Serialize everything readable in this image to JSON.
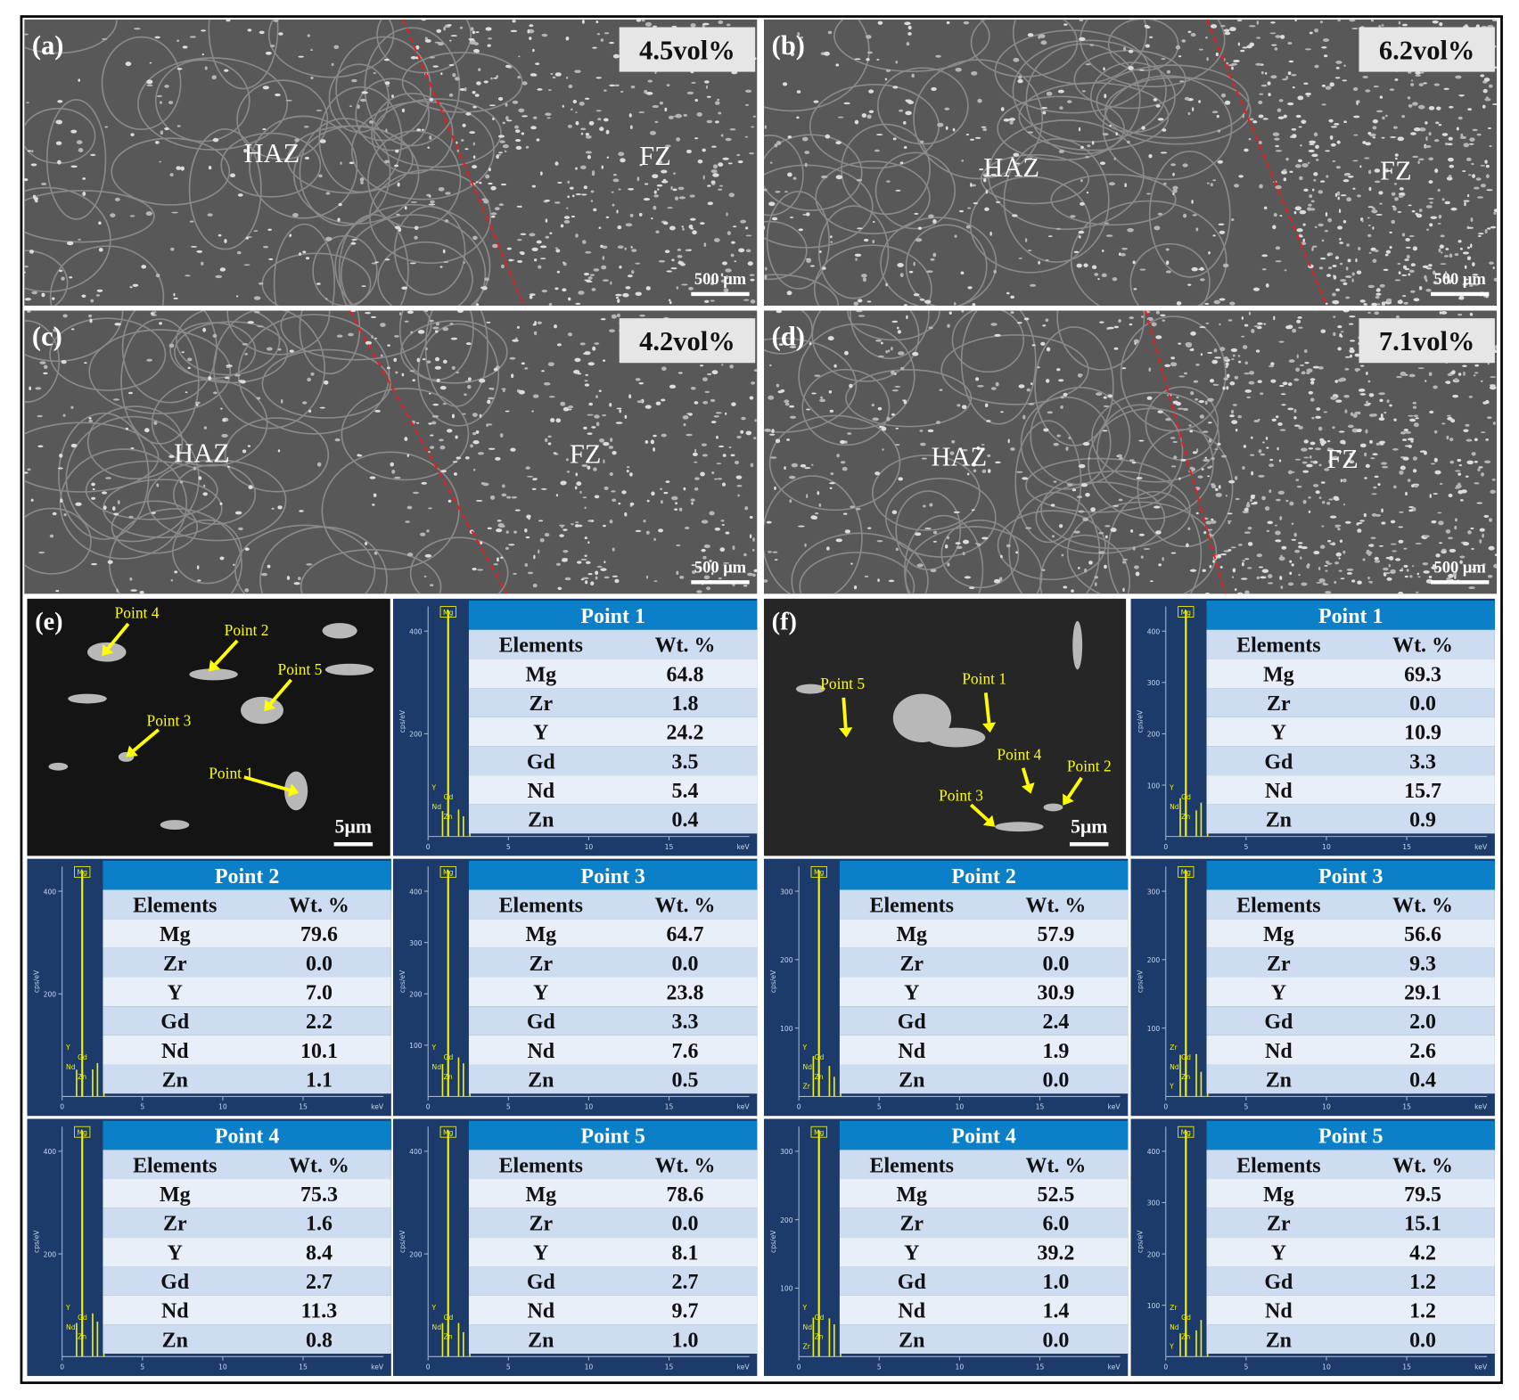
{
  "micrographs": [
    {
      "label": "(a)",
      "fraction": "4.5vol%",
      "zones": [
        "HAZ",
        "FZ"
      ],
      "scale_bar": "500 μm"
    },
    {
      "label": "(b)",
      "fraction": "6.2vol%",
      "zones": [
        "HAZ",
        "FZ"
      ],
      "scale_bar": "500 μm"
    },
    {
      "label": "(c)",
      "fraction": "4.2vol%",
      "zones": [
        "HAZ",
        "FZ"
      ],
      "scale_bar": "500 μm"
    },
    {
      "label": "(d)",
      "fraction": "7.1vol%",
      "zones": [
        "HAZ",
        "FZ"
      ],
      "scale_bar": "500 μm"
    }
  ],
  "sem_images": [
    {
      "label": "(e)",
      "scale_bar": "5μm",
      "points": [
        "Point 1",
        "Point 2",
        "Point 3",
        "Point 4",
        "Point 5"
      ]
    },
    {
      "label": "(f)",
      "scale_bar": "5μm",
      "points": [
        "Point 1",
        "Point 2",
        "Point 3",
        "Point 4",
        "Point 5"
      ]
    }
  ],
  "eds": [
    [
      {
        "title": "Point 1",
        "columns": [
          "Elements",
          "Wt. %"
        ],
        "rows": [
          [
            "Mg",
            "64.8"
          ],
          [
            "Zr",
            "1.8"
          ],
          [
            "Y",
            "24.2"
          ],
          [
            "Gd",
            "3.5"
          ],
          [
            "Nd",
            "5.4"
          ],
          [
            "Zn",
            "0.4"
          ]
        ],
        "spectrum": {
          "peak": "Mg",
          "minor_peaks": [
            "Y",
            "Gd",
            "Nd",
            "Zn"
          ],
          "yticks": [
            400,
            200
          ],
          "xticks": [
            0,
            5,
            10,
            15
          ],
          "xunit": "keV",
          "yunit": "cps/eV"
        }
      },
      {
        "title": "Point 2",
        "columns": [
          "Elements",
          "Wt. %"
        ],
        "rows": [
          [
            "Mg",
            "79.6"
          ],
          [
            "Zr",
            "0.0"
          ],
          [
            "Y",
            "7.0"
          ],
          [
            "Gd",
            "2.2"
          ],
          [
            "Nd",
            "10.1"
          ],
          [
            "Zn",
            "1.1"
          ]
        ],
        "spectrum": {
          "peak": "Mg",
          "minor_peaks": [
            "Y",
            "Gd",
            "Nd",
            "Zn"
          ],
          "yticks": [
            400,
            200
          ],
          "xticks": [
            0,
            5,
            10,
            15
          ],
          "xunit": "keV",
          "yunit": "cps/eV"
        }
      },
      {
        "title": "Point 3",
        "columns": [
          "Elements",
          "Wt. %"
        ],
        "rows": [
          [
            "Mg",
            "64.7"
          ],
          [
            "Zr",
            "0.0"
          ],
          [
            "Y",
            "23.8"
          ],
          [
            "Gd",
            "3.3"
          ],
          [
            "Nd",
            "7.6"
          ],
          [
            "Zn",
            "0.5"
          ]
        ],
        "spectrum": {
          "peak": "Mg",
          "minor_peaks": [
            "Y",
            "Gd",
            "Nd",
            "Zn"
          ],
          "yticks": [
            400,
            300,
            200,
            100
          ],
          "xticks": [
            0,
            5,
            10,
            15
          ],
          "xunit": "keV",
          "yunit": "cps/eV"
        }
      },
      {
        "title": "Point 4",
        "columns": [
          "Elements",
          "Wt. %"
        ],
        "rows": [
          [
            "Mg",
            "75.3"
          ],
          [
            "Zr",
            "1.6"
          ],
          [
            "Y",
            "8.4"
          ],
          [
            "Gd",
            "2.7"
          ],
          [
            "Nd",
            "11.3"
          ],
          [
            "Zn",
            "0.8"
          ]
        ],
        "spectrum": {
          "peak": "Mg",
          "minor_peaks": [
            "Y",
            "Gd",
            "Nd",
            "Zn"
          ],
          "yticks": [
            400,
            200
          ],
          "xticks": [
            0,
            5,
            10,
            15
          ],
          "xunit": "keV",
          "yunit": "cps/eV"
        }
      },
      {
        "title": "Point 5",
        "columns": [
          "Elements",
          "Wt. %"
        ],
        "rows": [
          [
            "Mg",
            "78.6"
          ],
          [
            "Zr",
            "0.0"
          ],
          [
            "Y",
            "8.1"
          ],
          [
            "Gd",
            "2.7"
          ],
          [
            "Nd",
            "9.7"
          ],
          [
            "Zn",
            "1.0"
          ]
        ],
        "spectrum": {
          "peak": "Mg",
          "minor_peaks": [
            "Y",
            "Gd",
            "Nd",
            "Zn"
          ],
          "yticks": [
            400,
            200
          ],
          "xticks": [
            0,
            5,
            10,
            15
          ],
          "xunit": "keV",
          "yunit": "cps/eV"
        }
      }
    ],
    [
      {
        "title": "Point 1",
        "columns": [
          "Elements",
          "Wt. %"
        ],
        "rows": [
          [
            "Mg",
            "69.3"
          ],
          [
            "Zr",
            "0.0"
          ],
          [
            "Y",
            "10.9"
          ],
          [
            "Gd",
            "3.3"
          ],
          [
            "Nd",
            "15.7"
          ],
          [
            "Zn",
            "0.9"
          ]
        ],
        "spectrum": {
          "peak": "Mg",
          "minor_peaks": [
            "Y",
            "Gd",
            "Nd",
            "Zn"
          ],
          "yticks": [
            400,
            300,
            200,
            100
          ],
          "xticks": [
            0,
            5,
            10,
            15
          ],
          "xunit": "keV",
          "yunit": "cps/eV"
        }
      },
      {
        "title": "Point 2",
        "columns": [
          "Elements",
          "Wt. %"
        ],
        "rows": [
          [
            "Mg",
            "57.9"
          ],
          [
            "Zr",
            "0.0"
          ],
          [
            "Y",
            "30.9"
          ],
          [
            "Gd",
            "2.4"
          ],
          [
            "Nd",
            "1.9"
          ],
          [
            "Zn",
            "0.0"
          ]
        ],
        "spectrum": {
          "peak": "Mg",
          "minor_peaks": [
            "Y",
            "Gd",
            "Nd",
            "Zn",
            "Zr"
          ],
          "yticks": [
            300,
            200,
            100
          ],
          "xticks": [
            0,
            5,
            10,
            15
          ],
          "xunit": "keV",
          "yunit": "cps/eV"
        }
      },
      {
        "title": "Point 3",
        "columns": [
          "Elements",
          "Wt. %"
        ],
        "rows": [
          [
            "Mg",
            "56.6"
          ],
          [
            "Zr",
            "9.3"
          ],
          [
            "Y",
            "29.1"
          ],
          [
            "Gd",
            "2.0"
          ],
          [
            "Nd",
            "2.6"
          ],
          [
            "Zn",
            "0.4"
          ]
        ],
        "spectrum": {
          "peak": "Mg",
          "minor_peaks": [
            "Zr",
            "Gd",
            "Nd",
            "Zn",
            "Y"
          ],
          "yticks": [
            300,
            200,
            100
          ],
          "xticks": [
            0,
            5,
            10,
            15
          ],
          "xunit": "keV",
          "yunit": "cps/eV"
        }
      },
      {
        "title": "Point 4",
        "columns": [
          "Elements",
          "Wt. %"
        ],
        "rows": [
          [
            "Mg",
            "52.5"
          ],
          [
            "Zr",
            "6.0"
          ],
          [
            "Y",
            "39.2"
          ],
          [
            "Gd",
            "1.0"
          ],
          [
            "Nd",
            "1.4"
          ],
          [
            "Zn",
            "0.0"
          ]
        ],
        "spectrum": {
          "peak": "Mg",
          "minor_peaks": [
            "Y",
            "Gd",
            "Nd",
            "Zn",
            "Zr"
          ],
          "yticks": [
            300,
            200,
            100
          ],
          "xticks": [
            0,
            5,
            10,
            15
          ],
          "xunit": "keV",
          "yunit": "cps/eV"
        }
      },
      {
        "title": "Point 5",
        "columns": [
          "Elements",
          "Wt. %"
        ],
        "rows": [
          [
            "Mg",
            "79.5"
          ],
          [
            "Zr",
            "15.1"
          ],
          [
            "Y",
            "4.2"
          ],
          [
            "Gd",
            "1.2"
          ],
          [
            "Nd",
            "1.2"
          ],
          [
            "Zn",
            "0.0"
          ]
        ],
        "spectrum": {
          "peak": "Mg",
          "minor_peaks": [
            "Zr",
            "Gd",
            "Nd",
            "Zn",
            "Y"
          ],
          "yticks": [
            400,
            300,
            200,
            100
          ],
          "xticks": [
            0,
            5,
            10,
            15
          ],
          "xunit": "keV",
          "yunit": "cps/eV"
        }
      }
    ]
  ]
}
